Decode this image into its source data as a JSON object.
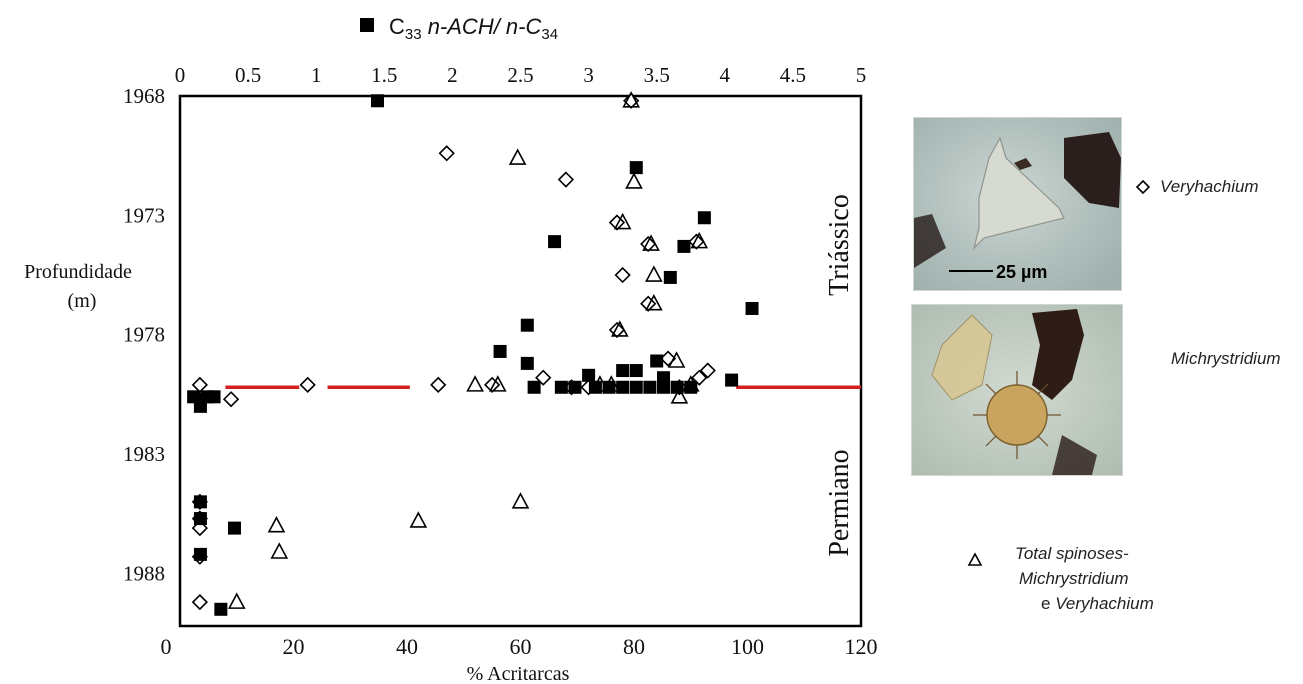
{
  "chart_data": {
    "type": "scatter",
    "title": "",
    "top_axis": {
      "label_prefix": "C",
      "label_sub1": "33",
      "label_mid": " n-ACH/ n-C",
      "label_sub2": "34",
      "ticks": [
        "0",
        "0.5",
        "1",
        "1.5",
        "2",
        "2.5",
        "3",
        "3.5",
        "4",
        "4.5",
        "5"
      ],
      "range": [
        0,
        5
      ]
    },
    "x_axis": {
      "label": "% Acritarcas",
      "ticks": [
        "20",
        "40",
        "60",
        "80",
        "100",
        "120"
      ],
      "origin_label": "0",
      "range": [
        0,
        120
      ]
    },
    "y_axis": {
      "label_line1": "Profundidade",
      "label_line2": "(m)",
      "ticks": [
        "1968",
        "1973",
        "1978",
        "1983",
        "1988"
      ],
      "range": [
        1968,
        1990.2
      ],
      "inverted": true
    },
    "period_labels": {
      "upper": "Triássico",
      "lower": "Permiano"
    },
    "boundary_depth": 1980.2,
    "colors": {
      "boundary": "#d42020",
      "markers": "#000000"
    },
    "series": [
      {
        "name": "Veryhachium",
        "marker": "diamond",
        "axis": "bottom",
        "points": [
          [
            79.5,
            1968.2
          ],
          [
            47,
            1970.4
          ],
          [
            68,
            1971.5
          ],
          [
            77,
            1973.3
          ],
          [
            82.5,
            1974.2
          ],
          [
            91,
            1974.1
          ],
          [
            78,
            1975.5
          ],
          [
            82.5,
            1976.7
          ],
          [
            77,
            1977.8
          ],
          [
            86,
            1979
          ],
          [
            93,
            1979.5
          ],
          [
            64,
            1979.8
          ],
          [
            91.5,
            1979.8
          ],
          [
            3.5,
            1980.1
          ],
          [
            22.5,
            1980.1
          ],
          [
            45.5,
            1980.1
          ],
          [
            55,
            1980.1
          ],
          [
            69,
            1980.2
          ],
          [
            72,
            1980.2
          ],
          [
            88,
            1980.2
          ],
          [
            9,
            1980.7
          ],
          [
            3.5,
            1985
          ],
          [
            3.5,
            1985.7
          ],
          [
            3.5,
            1986.1
          ],
          [
            3.5,
            1987.3
          ],
          [
            3.5,
            1989.2
          ]
        ]
      },
      {
        "name": "Total spinoses-Michrystridium e Veryhachium",
        "marker": "triangle",
        "axis": "bottom",
        "points": [
          [
            79.5,
            1968.2
          ],
          [
            59.5,
            1970.6
          ],
          [
            80,
            1971.6
          ],
          [
            78,
            1973.3
          ],
          [
            83,
            1974.2
          ],
          [
            91.5,
            1974.1
          ],
          [
            83.5,
            1975.5
          ],
          [
            83.5,
            1976.7
          ],
          [
            77.5,
            1977.8
          ],
          [
            87.5,
            1979.1
          ],
          [
            52,
            1980.1
          ],
          [
            56,
            1980.1
          ],
          [
            74,
            1980.1
          ],
          [
            76,
            1980.1
          ],
          [
            90,
            1980.1
          ],
          [
            88,
            1980.6
          ],
          [
            60,
            1985
          ],
          [
            42,
            1985.8
          ],
          [
            17,
            1986
          ],
          [
            17.5,
            1987.1
          ],
          [
            10,
            1989.2
          ]
        ]
      },
      {
        "name": "C33 n-ACH/ n-C34",
        "marker": "square",
        "axis": "top",
        "points": [
          [
            1.45,
            1968.2
          ],
          [
            3.35,
            1971
          ],
          [
            3.85,
            1973.1
          ],
          [
            2.75,
            1974.1
          ],
          [
            3.7,
            1974.3
          ],
          [
            3.6,
            1975.6
          ],
          [
            4.2,
            1976.9
          ],
          [
            2.55,
            1977.6
          ],
          [
            2.35,
            1978.7
          ],
          [
            2.55,
            1979.2
          ],
          [
            3.25,
            1979.5
          ],
          [
            3.35,
            1979.5
          ],
          [
            3.5,
            1979.1
          ],
          [
            3.0,
            1979.7
          ],
          [
            4.05,
            1979.9
          ],
          [
            3.55,
            1979.8
          ],
          [
            2.6,
            1980.2
          ],
          [
            2.8,
            1980.2
          ],
          [
            2.9,
            1980.2
          ],
          [
            3.05,
            1980.2
          ],
          [
            3.15,
            1980.2
          ],
          [
            3.25,
            1980.2
          ],
          [
            3.35,
            1980.2
          ],
          [
            3.45,
            1980.2
          ],
          [
            3.55,
            1980.2
          ],
          [
            3.65,
            1980.2
          ],
          [
            3.75,
            1980.2
          ],
          [
            0.1,
            1980.6
          ],
          [
            0.2,
            1980.6
          ],
          [
            0.25,
            1980.6
          ],
          [
            0.15,
            1980.7
          ],
          [
            0.15,
            1981
          ],
          [
            0.15,
            1985
          ],
          [
            0.15,
            1985.7
          ],
          [
            0.4,
            1986.1
          ],
          [
            0.15,
            1987.2
          ],
          [
            0.3,
            1989.5
          ]
        ]
      }
    ]
  },
  "legend": {
    "veryhachium_label": "Veryhachium",
    "michrystridium_label": "Michrystridium",
    "total_line1": "Total spinoses-",
    "total_line2": "Michrystridium",
    "total_line3_pre": "e ",
    "total_line3_italic": "Veryhachium"
  },
  "photo": {
    "scale_label": "25 µm"
  }
}
